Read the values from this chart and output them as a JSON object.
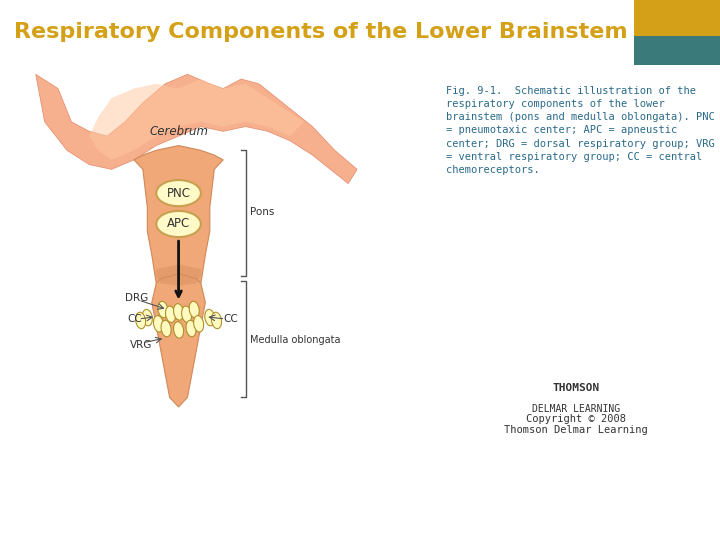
{
  "title": "Respiratory Components of the Lower Brainstem",
  "title_color": "#D4A017",
  "title_bg": "#1a1a1a",
  "title_accent_gold": "#D4A017",
  "title_accent_teal": "#3a7a7a",
  "fig_caption": "Fig. 9-1.  Schematic illustration of the respiratory components of the lower brainstem (pons and medulla oblongata). PNC = pneumotaxic center; APC = apneustic center; DRG = dorsal respiratory group; VRG = ventral respiratory group; CC = central chemoreceptors.",
  "caption_color": "#2a6a8a",
  "copyright_text": "Copyright © 2008\nThomson Delmar Learning",
  "cerebrum_color": "#F0A080",
  "cerebrum_color2": "#E8C0A0",
  "brainstem_color": "#F0B090",
  "brainstem_color2": "#EAC0A0",
  "ellipse_fill": "#FFFAC8",
  "ellipse_edge": "#C8A050",
  "label_color": "#333333",
  "bracket_color": "#555555",
  "arrow_color": "#111111",
  "bottom_bar_color": "#8B1A1A"
}
